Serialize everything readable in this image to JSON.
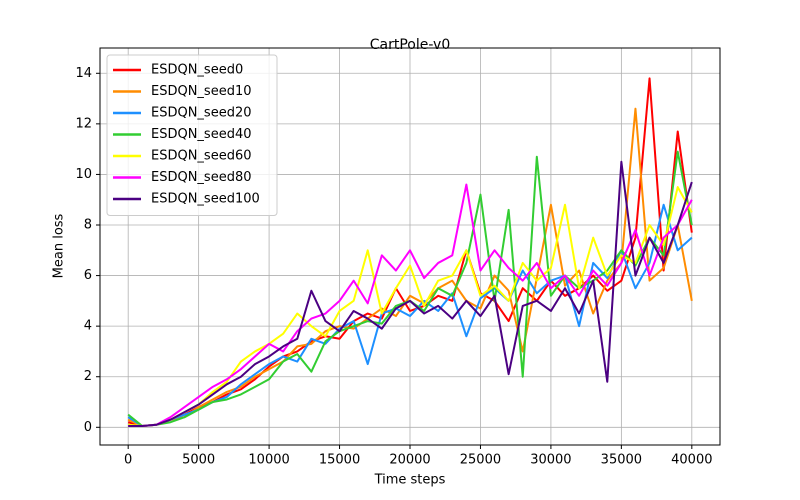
{
  "chart_data": {
    "type": "line",
    "title": "CartPole-v0",
    "x_label": "Time steps",
    "y_label": "Mean loss",
    "x": [
      0,
      1000,
      2000,
      3000,
      4000,
      5000,
      6000,
      7000,
      8000,
      9000,
      10000,
      11000,
      12000,
      13000,
      14000,
      15000,
      16000,
      17000,
      18000,
      19000,
      20000,
      21000,
      22000,
      23000,
      24000,
      25000,
      26000,
      27000,
      28000,
      29000,
      30000,
      31000,
      32000,
      33000,
      34000,
      35000,
      36000,
      37000,
      38000,
      39000,
      40000
    ],
    "series": [
      {
        "name": "ESDQN_seed0",
        "color": "#ff0000",
        "values": [
          0.2,
          0.05,
          0.1,
          0.3,
          0.5,
          0.8,
          1.0,
          1.3,
          1.5,
          1.9,
          2.4,
          2.8,
          3.0,
          3.4,
          3.6,
          3.5,
          4.2,
          4.5,
          4.3,
          5.5,
          4.6,
          4.8,
          5.2,
          5.0,
          7.0,
          5.3,
          5.0,
          4.2,
          5.5,
          5.0,
          5.8,
          5.2,
          5.5,
          6.0,
          5.4,
          5.8,
          7.5,
          13.8,
          6.2,
          11.7,
          7.7
        ]
      },
      {
        "name": "ESDQN_seed10",
        "color": "#ff8c00",
        "values": [
          0.3,
          0.05,
          0.1,
          0.3,
          0.4,
          0.8,
          1.1,
          1.4,
          1.6,
          2.0,
          2.3,
          2.6,
          3.2,
          3.3,
          3.8,
          4.0,
          3.9,
          4.3,
          4.7,
          4.4,
          5.2,
          4.9,
          5.5,
          5.8,
          5.0,
          4.7,
          6.0,
          5.4,
          3.0,
          5.9,
          8.8,
          5.6,
          6.2,
          4.5,
          5.8,
          6.5,
          12.6,
          5.8,
          6.3,
          8.0,
          5.0
        ]
      },
      {
        "name": "ESDQN_seed20",
        "color": "#1e90ff",
        "values": [
          0.4,
          0.05,
          0.1,
          0.3,
          0.5,
          0.7,
          1.0,
          1.2,
          1.7,
          2.1,
          2.5,
          2.8,
          2.6,
          3.5,
          3.3,
          3.9,
          4.2,
          2.5,
          4.5,
          4.7,
          4.4,
          5.0,
          4.6,
          5.3,
          3.6,
          5.1,
          5.5,
          5.0,
          6.2,
          5.3,
          5.8,
          6.0,
          4.0,
          6.5,
          5.9,
          7.0,
          5.5,
          6.5,
          8.8,
          7.0,
          7.5
        ]
      },
      {
        "name": "ESDQN_seed40",
        "color": "#32cd32",
        "values": [
          0.5,
          0.05,
          0.1,
          0.2,
          0.4,
          0.7,
          1.0,
          1.1,
          1.3,
          1.6,
          1.9,
          2.6,
          2.9,
          2.2,
          3.4,
          3.8,
          4.0,
          4.2,
          4.1,
          4.8,
          5.0,
          4.6,
          5.5,
          5.2,
          6.5,
          9.2,
          5.0,
          8.6,
          2.0,
          10.7,
          5.2,
          6.0,
          5.5,
          5.8,
          6.2,
          7.0,
          6.4,
          7.5,
          6.8,
          10.9,
          8.0
        ]
      },
      {
        "name": "ESDQN_seed60",
        "color": "#ffff00",
        "values": [
          0.1,
          0.05,
          0.1,
          0.3,
          0.6,
          0.9,
          1.4,
          1.8,
          2.6,
          3.0,
          3.3,
          3.7,
          4.5,
          4.0,
          3.6,
          4.6,
          5.0,
          7.0,
          4.5,
          5.5,
          6.4,
          4.8,
          5.8,
          6.0,
          7.0,
          5.2,
          5.6,
          5.0,
          6.5,
          5.8,
          6.3,
          8.8,
          5.5,
          7.5,
          6.0,
          6.8,
          6.5,
          8.0,
          7.2,
          9.5,
          8.5
        ]
      },
      {
        "name": "ESDQN_seed80",
        "color": "#ff00ff",
        "values": [
          0.05,
          0.05,
          0.1,
          0.4,
          0.8,
          1.2,
          1.6,
          1.9,
          2.3,
          2.8,
          3.3,
          3.0,
          3.8,
          4.3,
          4.5,
          5.0,
          5.8,
          4.9,
          6.8,
          6.2,
          7.0,
          5.9,
          6.5,
          6.8,
          9.6,
          6.2,
          7.0,
          6.3,
          5.8,
          6.5,
          5.5,
          6.0,
          5.2,
          6.2,
          5.6,
          6.5,
          7.8,
          6.0,
          7.5,
          8.0,
          9.0
        ]
      },
      {
        "name": "ESDQN_seed100",
        "color": "#4b0082",
        "values": [
          0.05,
          0.05,
          0.1,
          0.3,
          0.6,
          0.9,
          1.3,
          1.7,
          2.0,
          2.5,
          2.8,
          3.2,
          3.5,
          5.4,
          4.2,
          3.8,
          4.6,
          4.3,
          3.9,
          4.7,
          5.0,
          4.5,
          4.8,
          4.3,
          5.0,
          4.4,
          5.2,
          2.1,
          4.8,
          5.0,
          4.6,
          5.5,
          4.5,
          5.8,
          1.8,
          10.5,
          6.0,
          7.5,
          6.5,
          8.0,
          9.7
        ]
      }
    ],
    "xlim": [
      -2000,
      42000
    ],
    "ylim": [
      -0.7,
      15
    ],
    "xticks": [
      0,
      5000,
      10000,
      15000,
      20000,
      25000,
      30000,
      35000,
      40000
    ],
    "yticks": [
      0,
      2,
      4,
      6,
      8,
      10,
      12,
      14
    ],
    "grid": true,
    "legend": "upper left"
  }
}
